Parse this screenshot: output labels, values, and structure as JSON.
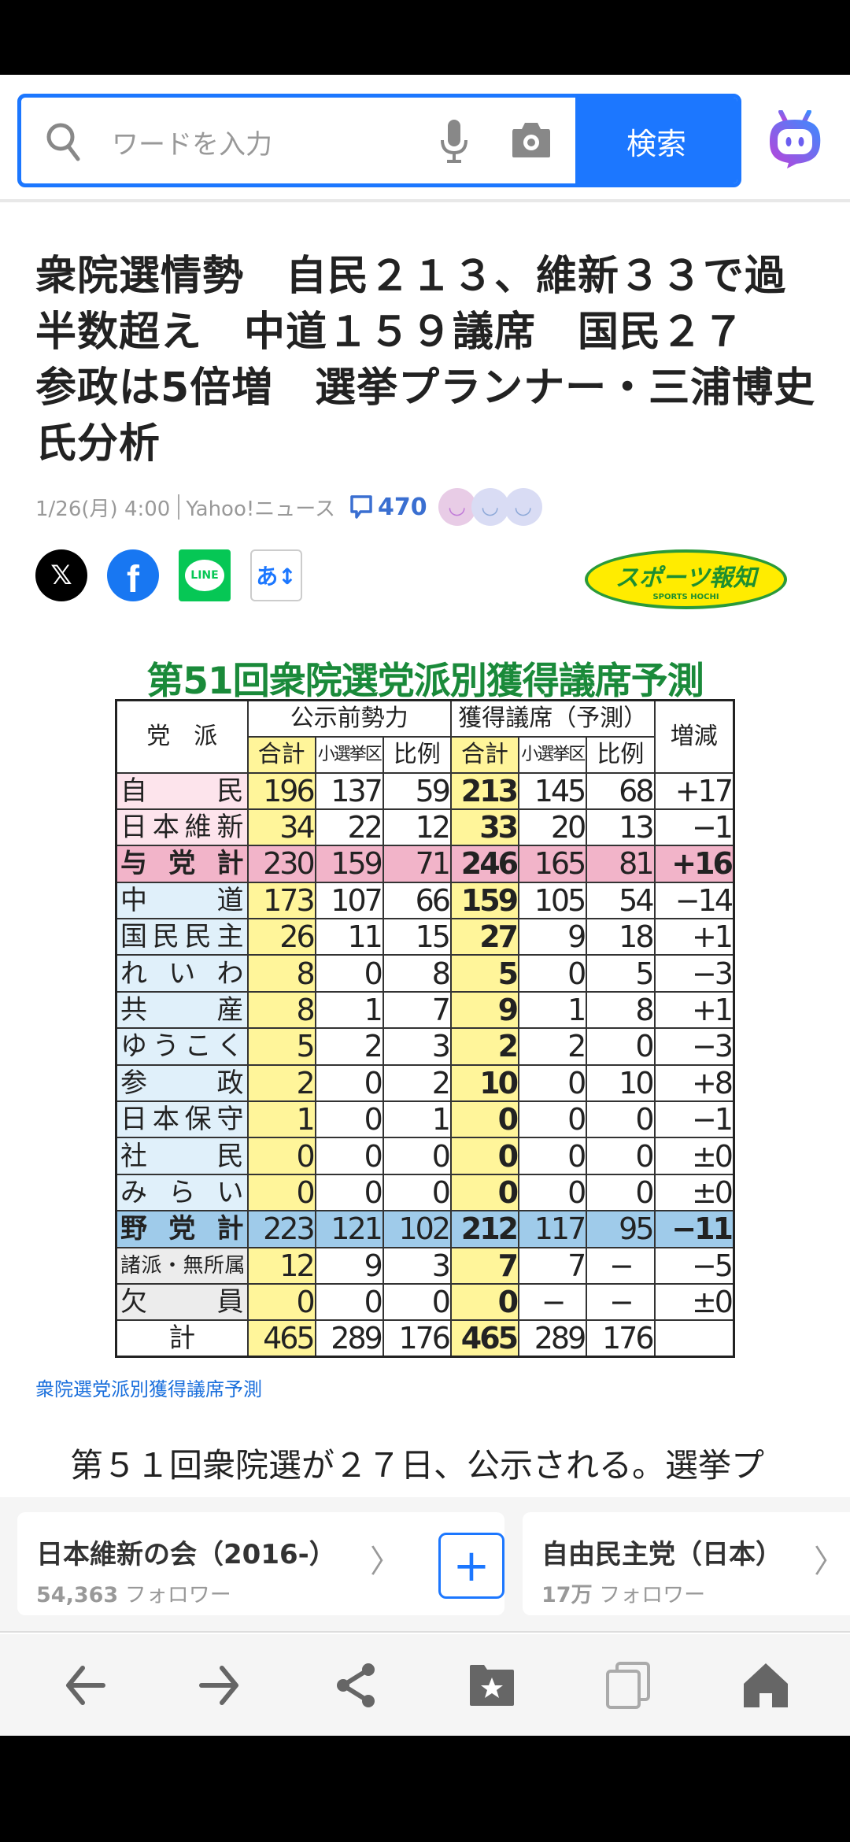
{
  "search": {
    "placeholder": "ワードを入力",
    "button": "検索"
  },
  "article": {
    "title": "衆院選情勢　自民２１３、維新３３で過半数超え　中道１５９議席　国民２７　参政は5倍増　選挙プランナー・三浦博史氏分析",
    "date": "1/26(月) 4:00",
    "source": "Yahoo!ニュース",
    "comment_count": "470",
    "share": {
      "line": "LINE",
      "font_size": "あ↕"
    },
    "publisher_logo": {
      "text": "スポーツ報知",
      "sub": "SPORTS HOCHI"
    },
    "image_caption": "衆院選党派別獲得議席予測",
    "body_first_line": "第５１回衆院選が２７日、公示される。選挙プ"
  },
  "table": {
    "title": "第51回衆院選党派別獲得議席予測",
    "header": {
      "party": "党　派",
      "before": "公示前勢力",
      "predicted": "獲得議席（予測）",
      "change": "増減",
      "total": "合計",
      "district": "小選挙区",
      "pr": "比例"
    },
    "rows": [
      {
        "party": "自民",
        "type": "ruling",
        "values": [
          "196",
          "137",
          "59",
          "213",
          "145",
          "68",
          "+17"
        ]
      },
      {
        "party": "日本維新",
        "type": "ruling",
        "values": [
          "34",
          "22",
          "12",
          "33",
          "20",
          "13",
          "−1"
        ]
      },
      {
        "party": "与党計",
        "type": "ruling-total",
        "values": [
          "230",
          "159",
          "71",
          "246",
          "165",
          "81",
          "+16"
        ]
      },
      {
        "party": "中道",
        "type": "opp",
        "values": [
          "173",
          "107",
          "66",
          "159",
          "105",
          "54",
          "−14"
        ]
      },
      {
        "party": "国民民主",
        "type": "opp",
        "values": [
          "26",
          "11",
          "15",
          "27",
          "9",
          "18",
          "+1"
        ]
      },
      {
        "party": "れいわ",
        "type": "opp",
        "values": [
          "8",
          "0",
          "8",
          "5",
          "0",
          "5",
          "−3"
        ]
      },
      {
        "party": "共産",
        "type": "opp",
        "values": [
          "8",
          "1",
          "7",
          "9",
          "1",
          "8",
          "+1"
        ]
      },
      {
        "party": "ゆうこく",
        "type": "opp",
        "values": [
          "5",
          "2",
          "3",
          "2",
          "2",
          "0",
          "−3"
        ]
      },
      {
        "party": "参政",
        "type": "opp",
        "values": [
          "2",
          "0",
          "2",
          "10",
          "0",
          "10",
          "+8"
        ]
      },
      {
        "party": "日本保守",
        "type": "opp",
        "values": [
          "1",
          "0",
          "1",
          "0",
          "0",
          "0",
          "−1"
        ]
      },
      {
        "party": "社民",
        "type": "opp",
        "values": [
          "0",
          "0",
          "0",
          "0",
          "0",
          "0",
          "±0"
        ]
      },
      {
        "party": "みらい",
        "type": "opp",
        "values": [
          "0",
          "0",
          "0",
          "0",
          "0",
          "0",
          "±0"
        ]
      },
      {
        "party": "野党計",
        "type": "opp-total",
        "values": [
          "223",
          "121",
          "102",
          "212",
          "117",
          "95",
          "−11"
        ]
      },
      {
        "party": "諸派・無所属",
        "type": "other",
        "values": [
          "12",
          "9",
          "3",
          "7",
          "7",
          "−",
          "−5"
        ]
      },
      {
        "party": "欠員",
        "type": "other",
        "values": [
          "0",
          "0",
          "0",
          "0",
          "−",
          "−",
          "±0"
        ]
      },
      {
        "party": "計",
        "type": "total",
        "values": [
          "465",
          "289",
          "176",
          "465",
          "289",
          "176",
          ""
        ]
      }
    ],
    "colors": {
      "ruling": "#fde4ec",
      "ruling-total": "#f2b4c9",
      "opp": "#e0f0fa",
      "opp-total": "#9fcbea",
      "other": "#ececec",
      "total": "#ffffff",
      "yellow": "#fff59a"
    }
  },
  "follow_cards": [
    {
      "name": "日本維新の会（2016-）",
      "count": "54,363",
      "suffix": "フォロワー"
    },
    {
      "name": "自由民主党（日本）",
      "count": "17万",
      "suffix": "フォロワー"
    }
  ],
  "colors": {
    "accent": "#1c77ff",
    "comment": "#3a6fd1",
    "link": "#1a6fdc"
  }
}
